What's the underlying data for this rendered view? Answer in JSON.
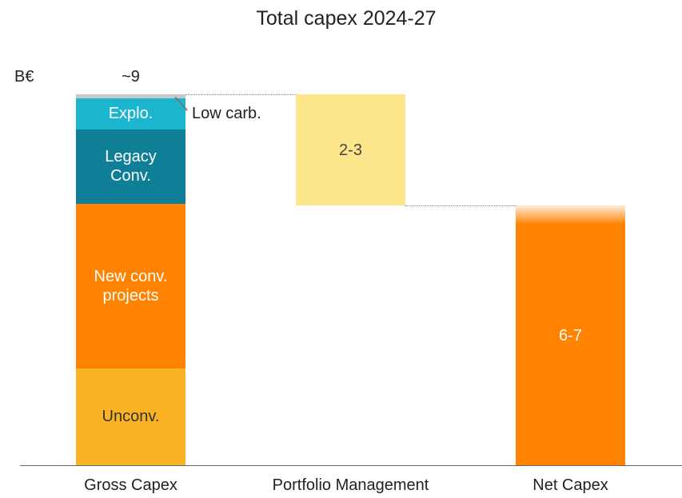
{
  "chart_data": {
    "type": "waterfall",
    "title": "Total capex 2024-27",
    "unit": "B€",
    "categories": [
      "Gross Capex",
      "Portfolio Management",
      "Net Capex"
    ],
    "gross": {
      "total": 9,
      "total_label": "~9",
      "segments": [
        {
          "name": "Unconv.",
          "color": "#fbb225",
          "label_color": "#333333",
          "value": 2.35
        },
        {
          "name": "New conv.\nprojects",
          "color": "#ff8200",
          "label_color": "#ffffff",
          "value": 4.0
        },
        {
          "name": "Legacy\nConv.",
          "color": "#0e7f97",
          "label_color": "#ffffff",
          "value": 1.8
        },
        {
          "name": "Explo.",
          "color": "#1bb5cf",
          "label_color": "#ffffff",
          "value": 0.75
        },
        {
          "name": "Low carb.",
          "color": "#c9c9c9",
          "label_color": "#222222",
          "value": 0.1
        }
      ]
    },
    "portfolio": {
      "value": 2.7,
      "label": "2-3",
      "color": "#fde58b",
      "label_color": "#444444"
    },
    "net": {
      "value": 6.3,
      "label": "6-7",
      "color": "#ff8200",
      "label_color": "#ffffff"
    }
  }
}
